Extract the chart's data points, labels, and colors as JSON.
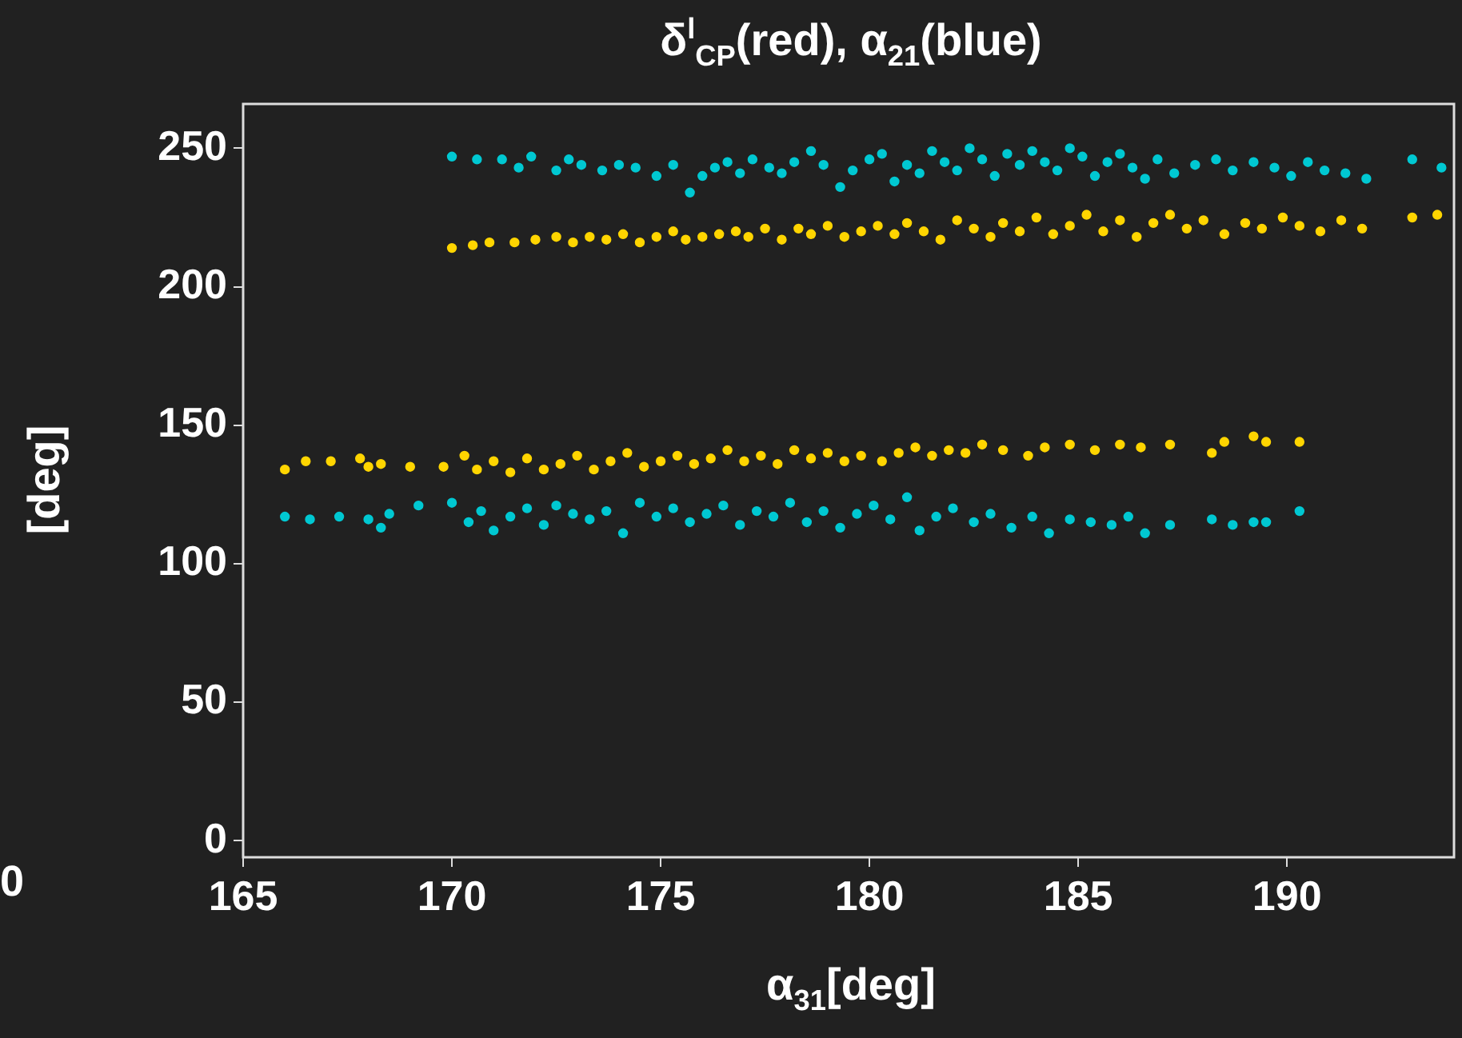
{
  "chart_data": {
    "type": "scatter",
    "title": "δ$^{l}$$_{CP}$(red), α$_{21}$(blue)",
    "xlabel": "α$_{31}$[deg]",
    "ylabel": "[deg]",
    "annotations": [
      "0"
    ],
    "marker": "circle",
    "grid": false,
    "legend": false,
    "xlim": [
      165,
      194
    ],
    "xticks": [
      165,
      170,
      175,
      180,
      185,
      190
    ],
    "ylim": [
      -6,
      266
    ],
    "yticks": [
      0,
      50,
      100,
      150,
      200,
      250
    ],
    "series": [
      {
        "color": "#00c8d2",
        "x": [
          170,
          170.6,
          171.2,
          171.6,
          171.9,
          172.5,
          172.8,
          173.1,
          173.6,
          174,
          174.4,
          174.9,
          175.3,
          175.7,
          176,
          176.3,
          176.6,
          176.9,
          177.2,
          177.6,
          177.9,
          178.2,
          178.6,
          178.9,
          179.3,
          179.6,
          180,
          180.3,
          180.6,
          180.9,
          181.2,
          181.5,
          181.8,
          182.1,
          182.4,
          182.7,
          183,
          183.3,
          183.6,
          183.9,
          184.2,
          184.5,
          184.8,
          185.1,
          185.4,
          185.7,
          186,
          186.3,
          186.6,
          186.9,
          187.3,
          187.8,
          188.3,
          188.7,
          189.2,
          189.7,
          190.1,
          190.5,
          190.9,
          191.4,
          191.9,
          193,
          193.7,
          166,
          166.6,
          167.3,
          168,
          168.3,
          168.5,
          169.2,
          170,
          170.4,
          170.7,
          171,
          171.4,
          171.8,
          172.2,
          172.5,
          172.9,
          173.3,
          173.7,
          174.1,
          174.5,
          174.9,
          175.3,
          175.7,
          176.1,
          176.5,
          176.9,
          177.3,
          177.7,
          178.1,
          178.5,
          178.9,
          179.3,
          179.7,
          180.1,
          180.5,
          180.9,
          181.2,
          181.6,
          182,
          182.5,
          182.9,
          183.4,
          183.9,
          184.3,
          184.8,
          185.3,
          185.8,
          186.2,
          186.6,
          187.2,
          188.2,
          188.7,
          189.2,
          189.5,
          190.3
        ],
        "values": [
          247,
          246,
          246,
          243,
          247,
          242,
          246,
          244,
          242,
          244,
          243,
          240,
          244,
          234,
          240,
          243,
          245,
          241,
          246,
          243,
          241,
          245,
          249,
          244,
          236,
          242,
          246,
          248,
          238,
          244,
          241,
          249,
          245,
          242,
          250,
          246,
          240,
          248,
          244,
          249,
          245,
          242,
          250,
          247,
          240,
          245,
          248,
          243,
          239,
          246,
          241,
          244,
          246,
          242,
          245,
          243,
          240,
          245,
          242,
          241,
          239,
          246,
          243,
          117,
          116,
          117,
          116,
          113,
          118,
          121,
          122,
          115,
          119,
          112,
          117,
          120,
          114,
          121,
          118,
          116,
          119,
          111,
          122,
          117,
          120,
          115,
          118,
          121,
          114,
          119,
          117,
          122,
          115,
          119,
          113,
          118,
          121,
          116,
          124,
          112,
          117,
          120,
          115,
          118,
          113,
          117,
          111,
          116,
          115,
          114,
          117,
          111,
          114,
          116,
          114,
          115,
          115,
          119
        ]
      },
      {
        "color": "#ffd500",
        "x": [
          170,
          170.5,
          170.9,
          171.5,
          172,
          172.5,
          172.9,
          173.3,
          173.7,
          174.1,
          174.5,
          174.9,
          175.3,
          175.6,
          176,
          176.4,
          176.8,
          177.1,
          177.5,
          177.9,
          178.3,
          178.6,
          179,
          179.4,
          179.8,
          180.2,
          180.6,
          180.9,
          181.3,
          181.7,
          182.1,
          182.5,
          182.9,
          183.2,
          183.6,
          184,
          184.4,
          184.8,
          185.2,
          185.6,
          186,
          186.4,
          186.8,
          187.2,
          187.6,
          188,
          188.5,
          189,
          189.4,
          189.9,
          190.3,
          190.8,
          191.3,
          191.8,
          193,
          193.6,
          166,
          166.5,
          167.1,
          167.8,
          168,
          168.3,
          169,
          169.8,
          170.3,
          170.6,
          171,
          171.4,
          171.8,
          172.2,
          172.6,
          173,
          173.4,
          173.8,
          174.2,
          174.6,
          175,
          175.4,
          175.8,
          176.2,
          176.6,
          177,
          177.4,
          177.8,
          178.2,
          178.6,
          179,
          179.4,
          179.8,
          180.3,
          180.7,
          181.1,
          181.5,
          181.9,
          182.3,
          182.7,
          183.2,
          183.8,
          184.2,
          184.8,
          185.4,
          186,
          186.5,
          187.2,
          188.2,
          188.5,
          189.2,
          189.5,
          190.3
        ],
        "values": [
          214,
          215,
          216,
          216,
          217,
          218,
          216,
          218,
          217,
          219,
          216,
          218,
          220,
          217,
          218,
          219,
          220,
          218,
          221,
          217,
          221,
          219,
          222,
          218,
          220,
          222,
          219,
          223,
          220,
          217,
          224,
          221,
          218,
          223,
          220,
          225,
          219,
          222,
          226,
          220,
          224,
          218,
          223,
          226,
          221,
          224,
          219,
          223,
          221,
          225,
          222,
          220,
          224,
          221,
          225,
          226,
          134,
          137,
          137,
          138,
          135,
          136,
          135,
          135,
          139,
          134,
          137,
          133,
          138,
          134,
          136,
          139,
          134,
          137,
          140,
          135,
          137,
          139,
          136,
          138,
          141,
          137,
          139,
          136,
          141,
          138,
          140,
          137,
          139,
          137,
          140,
          142,
          139,
          141,
          140,
          143,
          141,
          139,
          142,
          143,
          141,
          143,
          142,
          143,
          140,
          144,
          146,
          144,
          144
        ]
      }
    ]
  }
}
